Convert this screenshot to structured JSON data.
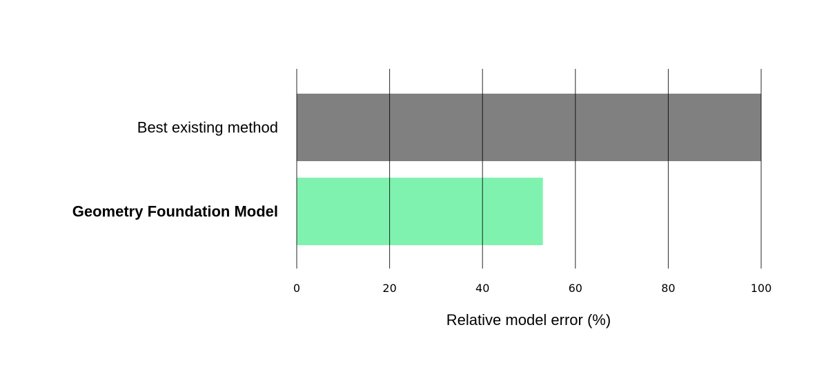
{
  "chart_data": {
    "type": "bar",
    "orientation": "horizontal",
    "categories": [
      "Best existing method",
      "Geometry Foundation Model"
    ],
    "values": [
      100,
      53
    ],
    "colors": [
      "#808080",
      "#80f2b0"
    ],
    "bold_categories": [
      "Geometry Foundation Model"
    ],
    "xlabel": "Relative model error (%)",
    "ylabel": "",
    "title": "",
    "xlim": [
      0,
      100
    ],
    "xticks": [
      0,
      20,
      40,
      60,
      80,
      100
    ],
    "xtick_labels": [
      "0",
      "20",
      "40",
      "60",
      "80",
      "100"
    ],
    "grid": "vertical",
    "gridline_color": "#000000"
  }
}
